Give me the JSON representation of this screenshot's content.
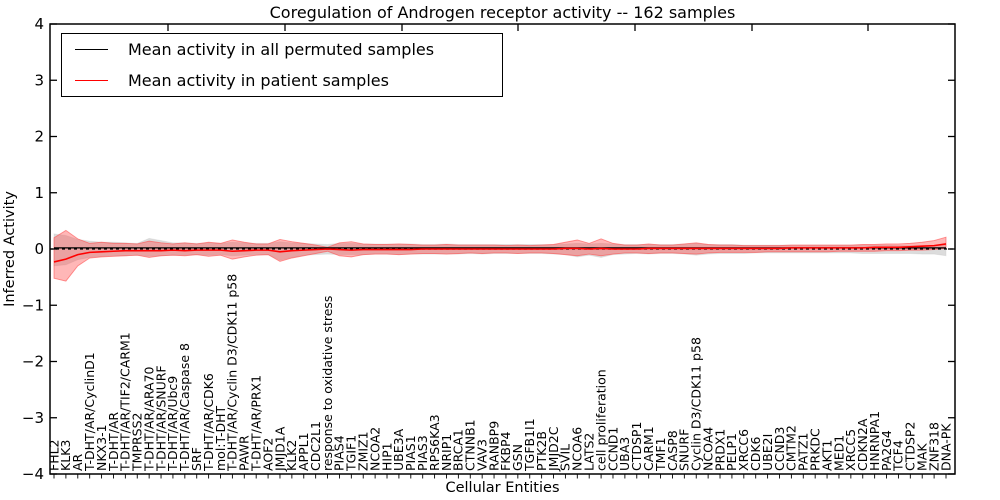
{
  "chart_data": {
    "type": "line",
    "title": "Coregulation of Androgen receptor activity -- 162 samples",
    "xlabel": "Cellular Entities",
    "ylabel": "Inferred Activity",
    "ylim": [
      -4,
      4
    ],
    "yticks": [
      -4,
      -3,
      -2,
      -1,
      0,
      1,
      2,
      3,
      4
    ],
    "grid": false,
    "legend_position": "upper left",
    "legend": [
      {
        "label": "Mean activity in all permuted samples",
        "color": "#000000"
      },
      {
        "label": "Mean activity in patient samples",
        "color": "#ff0000"
      }
    ],
    "zero_line": {
      "y": 0,
      "style": "dashed",
      "color": "#000000"
    },
    "categories": [
      "FHL2",
      "KLK3",
      "AR",
      "T-DHT/AR/CyclinD1",
      "NKX3-1",
      "T-DHT/AR",
      "T-DHT/AR/TIF2/CARM1",
      "TMPRSS2",
      "T-DHT/AR/ARA70",
      "T-DHT/AR/SNURF",
      "T-DHT/AR/Ubc9",
      "T-DHT/AR/Caspase 8",
      "SRF",
      "T-DHT/AR/CDK6",
      "mol:T-DHT",
      "T-DHT/AR/Cyclin D3/CDK11 p58",
      "PAWR",
      "T-DHT/AR/PRX1",
      "AOF2",
      "JMJD1A",
      "KLK2",
      "APPL1",
      "CDC2L1",
      "response to oxidative stress",
      "PIAS4",
      "TGIF1",
      "ZMIZ1",
      "NCOA2",
      "HIP1",
      "UBE3A",
      "PIAS1",
      "PIAS3",
      "RPS6KA3",
      "NRIP1",
      "BRCA1",
      "CTNNB1",
      "VAV3",
      "RANBP9",
      "FKBP4",
      "GSN",
      "TGFB1I1",
      "PTK2B",
      "JMJD2C",
      "SVIL",
      "NCOA6",
      "LATS2",
      "cell proliferation",
      "CCND1",
      "UBA3",
      "CTDSP1",
      "CARM1",
      "TMF1",
      "CASP8",
      "SNURF",
      "Cyclin D3/CDK11 p58",
      "NCOA4",
      "PRDX1",
      "PELP1",
      "XRCC6",
      "CDK6",
      "UBE2I",
      "CCND3",
      "CMTM2",
      "PATZ1",
      "PRKDC",
      "AKT1",
      "MED1",
      "XRCC5",
      "CDKN2A",
      "HNRNPA1",
      "PA2G4",
      "TCF4",
      "CTDSP2",
      "MAK",
      "ZNF318",
      "DNA-PK"
    ],
    "series": [
      {
        "name": "Mean activity in all permuted samples",
        "color": "#000000",
        "values": [
          0.02,
          0.02,
          0.02,
          0.02,
          0.02,
          0.02,
          0.02,
          0.02,
          0.02,
          0.02,
          0.02,
          0.02,
          0.02,
          0.02,
          0.02,
          0.02,
          0.02,
          0.02,
          0.02,
          0.02,
          0.02,
          0.02,
          0.02,
          0.02,
          0.02,
          0.02,
          0.02,
          0.02,
          0.02,
          0.02,
          0.02,
          0.02,
          0.02,
          0.02,
          0.02,
          0.02,
          0.02,
          0.02,
          0.02,
          0.02,
          0.02,
          0.02,
          0.02,
          0.02,
          0.02,
          0.02,
          0.02,
          0.02,
          0.02,
          0.02,
          0.02,
          0.02,
          0.02,
          0.02,
          0.02,
          0.02,
          0.02,
          0.02,
          0.02,
          0.02,
          0.02,
          0.02,
          0.02,
          0.02,
          0.02,
          0.02,
          0.02,
          0.02,
          0.02,
          0.02,
          0.02,
          0.02,
          0.02,
          0.02,
          0.02,
          0.02
        ]
      },
      {
        "name": "Mean activity in patient samples",
        "color": "#ff0000",
        "values": [
          -0.23,
          -0.18,
          -0.1,
          -0.06,
          -0.05,
          -0.04,
          -0.03,
          -0.03,
          -0.03,
          -0.03,
          -0.02,
          -0.03,
          -0.02,
          -0.02,
          -0.02,
          -0.04,
          -0.03,
          -0.02,
          -0.02,
          -0.05,
          -0.03,
          -0.02,
          -0.01,
          0.0,
          -0.01,
          -0.02,
          -0.01,
          -0.01,
          -0.01,
          -0.01,
          -0.01,
          0.0,
          0.0,
          0.0,
          0.0,
          0.0,
          0.0,
          0.0,
          0.0,
          0.0,
          0.0,
          0.0,
          0.0,
          0.01,
          0.01,
          0.0,
          0.01,
          0.0,
          0.0,
          0.0,
          0.01,
          0.01,
          0.01,
          0.01,
          0.01,
          0.01,
          0.01,
          0.01,
          0.01,
          0.01,
          0.01,
          0.01,
          0.02,
          0.02,
          0.02,
          0.02,
          0.02,
          0.02,
          0.02,
          0.03,
          0.03,
          0.03,
          0.04,
          0.05,
          0.06,
          0.09
        ]
      }
    ],
    "bands": [
      {
        "name": "permuted samples range",
        "color": "#bfbfbf",
        "opacity": 0.55,
        "upper": [
          0.27,
          0.24,
          0.17,
          0.14,
          0.12,
          0.12,
          0.11,
          0.1,
          0.19,
          0.15,
          0.11,
          0.11,
          0.1,
          0.11,
          0.1,
          0.12,
          0.11,
          0.1,
          0.1,
          0.13,
          0.11,
          0.1,
          0.09,
          0.08,
          0.1,
          0.1,
          0.09,
          0.09,
          0.09,
          0.09,
          0.09,
          0.08,
          0.08,
          0.09,
          0.08,
          0.08,
          0.08,
          0.08,
          0.08,
          0.08,
          0.08,
          0.08,
          0.08,
          0.09,
          0.1,
          0.09,
          0.1,
          0.09,
          0.08,
          0.08,
          0.08,
          0.08,
          0.08,
          0.09,
          0.1,
          0.08,
          0.08,
          0.08,
          0.07,
          0.07,
          0.07,
          0.07,
          0.07,
          0.07,
          0.07,
          0.07,
          0.07,
          0.07,
          0.07,
          0.07,
          0.07,
          0.06,
          0.06,
          0.06,
          0.06,
          0.08
        ],
        "lower": [
          -0.3,
          -0.28,
          -0.19,
          -0.15,
          -0.13,
          -0.12,
          -0.12,
          -0.11,
          -0.13,
          -0.12,
          -0.11,
          -0.11,
          -0.1,
          -0.11,
          -0.1,
          -0.12,
          -0.11,
          -0.1,
          -0.1,
          -0.2,
          -0.15,
          -0.11,
          -0.1,
          -0.09,
          -0.1,
          -0.1,
          -0.1,
          -0.09,
          -0.09,
          -0.1,
          -0.09,
          -0.09,
          -0.09,
          -0.09,
          -0.09,
          -0.08,
          -0.09,
          -0.08,
          -0.08,
          -0.08,
          -0.08,
          -0.08,
          -0.09,
          -0.1,
          -0.14,
          -0.11,
          -0.15,
          -0.1,
          -0.09,
          -0.08,
          -0.09,
          -0.08,
          -0.08,
          -0.09,
          -0.11,
          -0.09,
          -0.08,
          -0.08,
          -0.08,
          -0.07,
          -0.07,
          -0.07,
          -0.07,
          -0.07,
          -0.07,
          -0.07,
          -0.07,
          -0.07,
          -0.08,
          -0.08,
          -0.08,
          -0.08,
          -0.08,
          -0.09,
          -0.09,
          -0.12
        ]
      },
      {
        "name": "patient samples range",
        "color": "#ff4c4c",
        "opacity": 0.4,
        "upper": [
          0.2,
          0.33,
          0.18,
          0.1,
          0.12,
          0.1,
          0.1,
          0.09,
          0.14,
          0.11,
          0.09,
          0.11,
          0.09,
          0.12,
          0.1,
          0.16,
          0.12,
          0.09,
          0.09,
          0.17,
          0.13,
          0.1,
          0.07,
          0.03,
          0.11,
          0.13,
          0.09,
          0.08,
          0.08,
          0.09,
          0.08,
          0.07,
          0.07,
          0.08,
          0.07,
          0.07,
          0.07,
          0.07,
          0.06,
          0.07,
          0.06,
          0.07,
          0.08,
          0.12,
          0.16,
          0.1,
          0.18,
          0.1,
          0.07,
          0.07,
          0.09,
          0.07,
          0.07,
          0.09,
          0.11,
          0.08,
          0.07,
          0.07,
          0.06,
          0.06,
          0.06,
          0.06,
          0.07,
          0.07,
          0.07,
          0.07,
          0.07,
          0.07,
          0.08,
          0.08,
          0.09,
          0.09,
          0.1,
          0.12,
          0.15,
          0.21
        ],
        "lower": [
          -0.52,
          -0.57,
          -0.3,
          -0.16,
          -0.14,
          -0.13,
          -0.12,
          -0.11,
          -0.15,
          -0.12,
          -0.11,
          -0.12,
          -0.1,
          -0.13,
          -0.11,
          -0.18,
          -0.14,
          -0.11,
          -0.1,
          -0.22,
          -0.16,
          -0.12,
          -0.08,
          -0.04,
          -0.12,
          -0.14,
          -0.1,
          -0.09,
          -0.09,
          -0.1,
          -0.09,
          -0.08,
          -0.08,
          -0.09,
          -0.08,
          -0.07,
          -0.08,
          -0.07,
          -0.07,
          -0.08,
          -0.07,
          -0.07,
          -0.08,
          -0.1,
          -0.12,
          -0.09,
          -0.12,
          -0.09,
          -0.07,
          -0.07,
          -0.08,
          -0.07,
          -0.07,
          -0.08,
          -0.09,
          -0.07,
          -0.06,
          -0.06,
          -0.06,
          -0.06,
          -0.05,
          -0.05,
          -0.05,
          -0.05,
          -0.05,
          -0.05,
          -0.04,
          -0.04,
          -0.04,
          -0.04,
          -0.03,
          -0.03,
          -0.02,
          -0.02,
          -0.01,
          0.01
        ]
      }
    ]
  }
}
